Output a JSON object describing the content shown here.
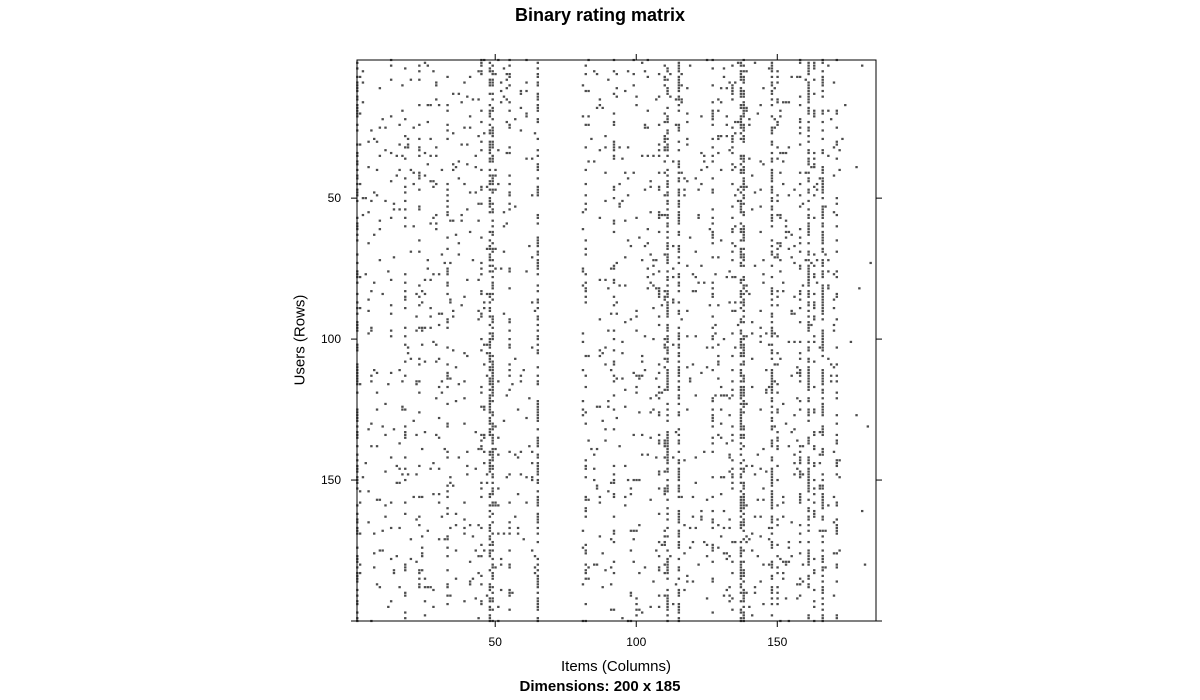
{
  "chart_data": {
    "type": "heatmap",
    "title": "Binary rating matrix",
    "xlabel": "Items (Columns)",
    "ylabel": "Users (Rows)",
    "sublabel": "Dimensions: 200 x 185",
    "rows": 200,
    "cols": 185,
    "xlim": [
      1,
      185
    ],
    "ylim": [
      200,
      1
    ],
    "x_ticks": [
      50,
      100,
      150
    ],
    "y_ticks": [
      50,
      100,
      150
    ],
    "cell_color": "#4d4d4d",
    "dense_columns": [
      1,
      48,
      49,
      65,
      111,
      115,
      137,
      138,
      148,
      161,
      166
    ],
    "medium_columns": [
      18,
      23,
      33,
      45,
      55,
      82,
      92,
      108,
      110,
      127,
      134,
      150,
      158,
      163,
      171
    ],
    "description_note_removed": true
  }
}
